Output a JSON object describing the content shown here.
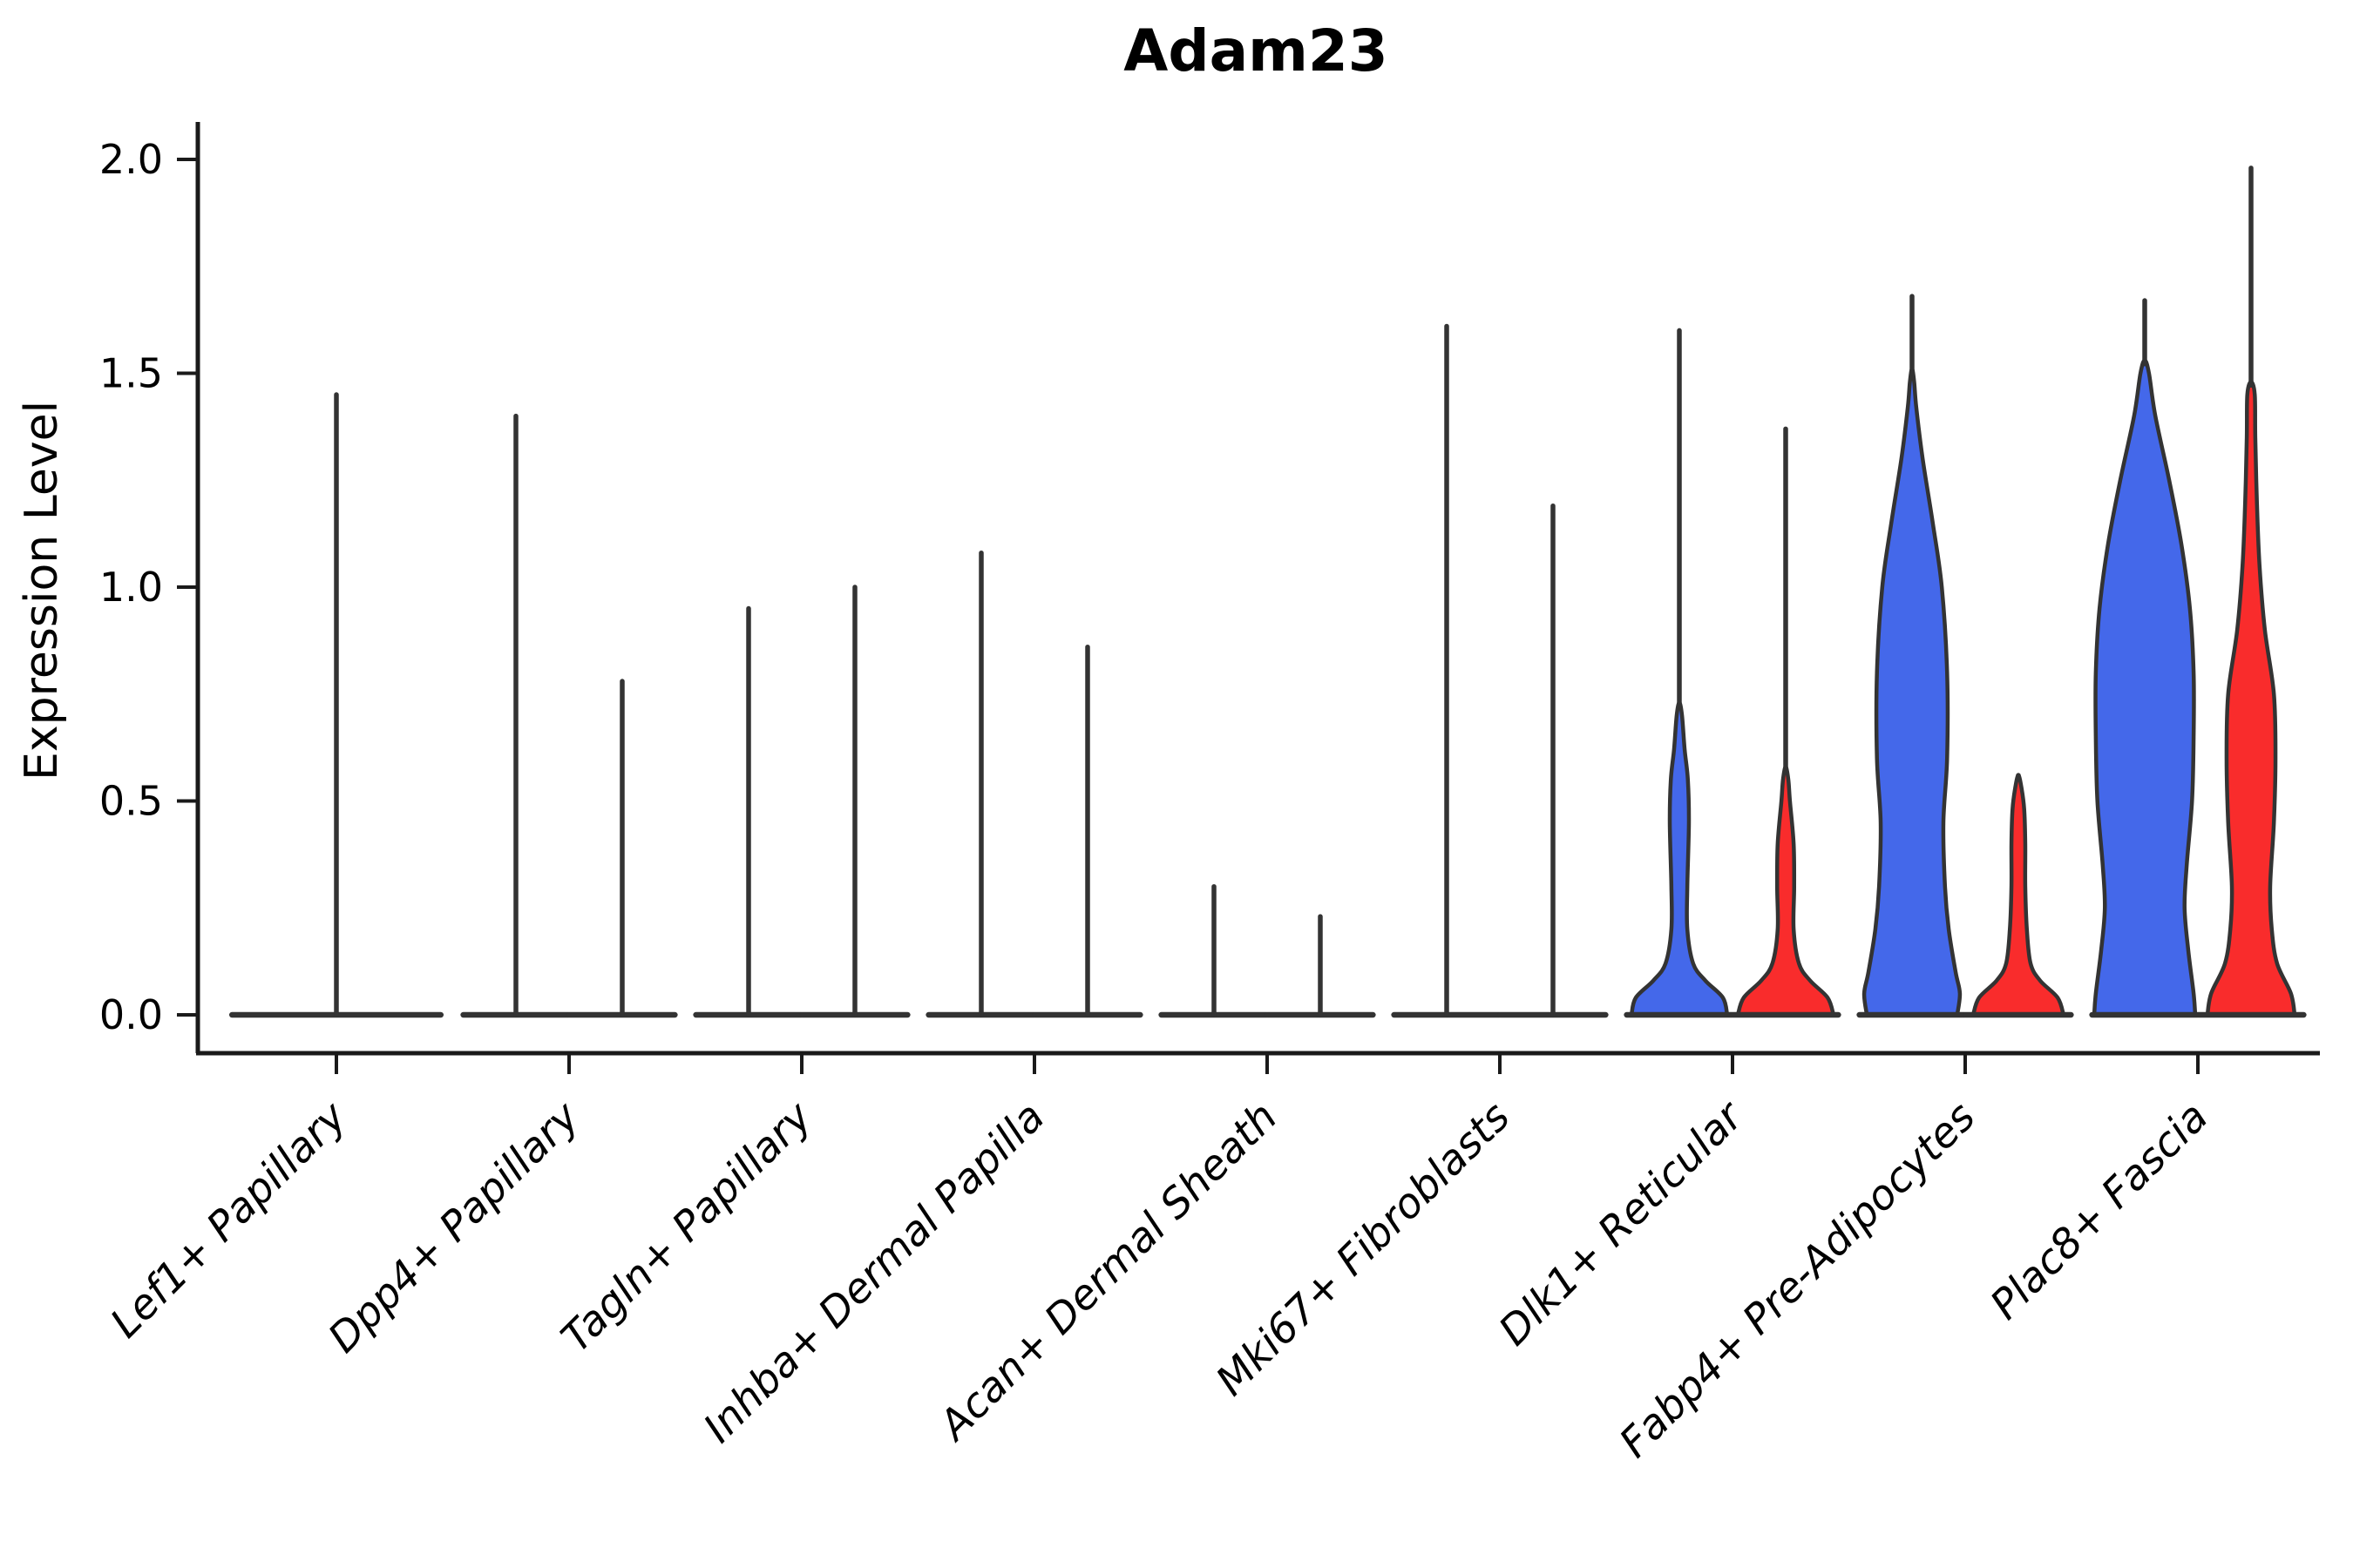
{
  "title": "Adam23",
  "ylabel": "Expression Level",
  "chart_data": {
    "type": "violin",
    "title": "Adam23",
    "ylabel": "Expression Level",
    "xlabel": "",
    "ylim": [
      0,
      2.09
    ],
    "yticks": [
      0.0,
      0.5,
      1.0,
      1.5,
      2.0
    ],
    "ytick_labels": [
      "0.0",
      "0.5",
      "1.0",
      "1.5",
      "2.0"
    ],
    "grid": false,
    "legend": "none",
    "categories": [
      "Lef1+ Papillary",
      "Dpp4+ Papillary",
      "Tagln+ Papillary",
      "Inhba+ Dermal Papilla",
      "Acan+ Dermal Sheath",
      "Mki67+ Fibroblasts",
      "Dlk1+ Reticular",
      "Fabp4+ Pre-Adipocytes",
      "Plac8+ Fascia"
    ],
    "colors": {
      "blue": "#4468EA",
      "red": "#F92C2C",
      "edge": "#333333",
      "axis": "#1a1a1a"
    },
    "violins": [
      {
        "category": "Lef1+ Papillary",
        "items": [
          {
            "pos": "center",
            "type": "collapsed",
            "max": 1.45
          }
        ]
      },
      {
        "category": "Dpp4+ Papillary",
        "items": [
          {
            "pos": "left",
            "type": "collapsed",
            "max": 1.4
          },
          {
            "pos": "right",
            "type": "collapsed",
            "max": 0.78
          }
        ]
      },
      {
        "category": "Tagln+ Papillary",
        "items": [
          {
            "pos": "left",
            "type": "collapsed",
            "max": 0.95
          },
          {
            "pos": "right",
            "type": "collapsed",
            "max": 1.0
          }
        ]
      },
      {
        "category": "Inhba+ Dermal Papilla",
        "items": [
          {
            "pos": "left",
            "type": "collapsed",
            "max": 1.08
          },
          {
            "pos": "right",
            "type": "collapsed",
            "max": 0.86
          }
        ]
      },
      {
        "category": "Acan+ Dermal Sheath",
        "items": [
          {
            "pos": "left",
            "type": "collapsed",
            "max": 0.3
          },
          {
            "pos": "right",
            "type": "collapsed",
            "max": 0.23
          }
        ]
      },
      {
        "category": "Mki67+ Fibroblasts",
        "items": [
          {
            "pos": "left",
            "type": "collapsed",
            "max": 1.61
          },
          {
            "pos": "right",
            "type": "collapsed",
            "max": 1.19
          }
        ]
      },
      {
        "category": "Dlk1+ Reticular",
        "items": [
          {
            "pos": "left",
            "type": "filled",
            "color": "blue",
            "max": 1.6,
            "profile": [
              [
                0,
                0.9
              ],
              [
                0.04,
                0.82
              ],
              [
                0.08,
                0.49
              ],
              [
                0.12,
                0.26
              ],
              [
                0.2,
                0.15
              ],
              [
                0.3,
                0.15
              ],
              [
                0.45,
                0.18
              ],
              [
                0.55,
                0.16
              ],
              [
                0.62,
                0.1
              ],
              [
                0.7,
                0.05
              ]
            ]
          },
          {
            "pos": "right",
            "type": "filled",
            "color": "red",
            "max": 1.37,
            "profile": [
              [
                0,
                0.9
              ],
              [
                0.04,
                0.79
              ],
              [
                0.08,
                0.46
              ],
              [
                0.12,
                0.25
              ],
              [
                0.2,
                0.15
              ],
              [
                0.3,
                0.16
              ],
              [
                0.4,
                0.15
              ],
              [
                0.5,
                0.08
              ],
              [
                0.55,
                0.05
              ]
            ]
          }
        ]
      },
      {
        "category": "Fabp4+ Pre-Adipocytes",
        "items": [
          {
            "pos": "left",
            "type": "filled",
            "color": "blue",
            "max": 1.68,
            "profile": [
              [
                0,
                0.85
              ],
              [
                0.05,
                0.9
              ],
              [
                0.1,
                0.82
              ],
              [
                0.2,
                0.69
              ],
              [
                0.3,
                0.62
              ],
              [
                0.45,
                0.59
              ],
              [
                0.6,
                0.66
              ],
              [
                0.8,
                0.66
              ],
              [
                1.0,
                0.56
              ],
              [
                1.15,
                0.39
              ],
              [
                1.3,
                0.2
              ],
              [
                1.42,
                0.08
              ],
              [
                1.48,
                0.04
              ]
            ]
          },
          {
            "pos": "right",
            "type": "filled",
            "color": "red",
            "max": 0.56,
            "profile": [
              [
                0,
                0.85
              ],
              [
                0.04,
                0.74
              ],
              [
                0.08,
                0.41
              ],
              [
                0.12,
                0.23
              ],
              [
                0.2,
                0.16
              ],
              [
                0.3,
                0.13
              ],
              [
                0.4,
                0.13
              ],
              [
                0.48,
                0.11
              ],
              [
                0.53,
                0.06
              ]
            ]
          }
        ]
      },
      {
        "category": "Plac8+ Fascia",
        "items": [
          {
            "pos": "left",
            "type": "filled",
            "color": "blue",
            "max": 1.67,
            "profile": [
              [
                0,
                0.95
              ],
              [
                0.05,
                0.92
              ],
              [
                0.15,
                0.82
              ],
              [
                0.25,
                0.75
              ],
              [
                0.35,
                0.79
              ],
              [
                0.5,
                0.89
              ],
              [
                0.65,
                0.92
              ],
              [
                0.8,
                0.92
              ],
              [
                0.95,
                0.85
              ],
              [
                1.1,
                0.69
              ],
              [
                1.25,
                0.46
              ],
              [
                1.4,
                0.2
              ],
              [
                1.5,
                0.08
              ]
            ]
          },
          {
            "pos": "right",
            "type": "filled",
            "color": "red",
            "max": 1.98,
            "profile": [
              [
                0,
                0.82
              ],
              [
                0.05,
                0.75
              ],
              [
                0.12,
                0.49
              ],
              [
                0.2,
                0.39
              ],
              [
                0.3,
                0.36
              ],
              [
                0.45,
                0.43
              ],
              [
                0.6,
                0.46
              ],
              [
                0.75,
                0.43
              ],
              [
                0.9,
                0.26
              ],
              [
                1.05,
                0.16
              ],
              [
                1.2,
                0.11
              ],
              [
                1.35,
                0.08
              ],
              [
                1.45,
                0.07
              ]
            ]
          }
        ]
      }
    ]
  }
}
